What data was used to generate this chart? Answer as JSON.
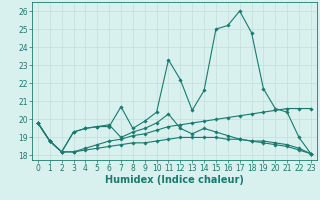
{
  "title": "",
  "xlabel": "Humidex (Indice chaleur)",
  "ylabel": "",
  "x": [
    0,
    1,
    2,
    3,
    4,
    5,
    6,
    7,
    8,
    9,
    10,
    11,
    12,
    13,
    14,
    15,
    16,
    17,
    18,
    19,
    20,
    21,
    22,
    23
  ],
  "line1": [
    19.8,
    18.8,
    18.2,
    19.3,
    19.5,
    19.6,
    19.6,
    20.7,
    19.5,
    19.9,
    20.4,
    23.3,
    22.2,
    20.5,
    21.6,
    25.0,
    25.2,
    26.0,
    24.8,
    21.7,
    20.6,
    20.4,
    19.0,
    18.1
  ],
  "line2": [
    19.8,
    18.8,
    18.2,
    19.3,
    19.5,
    19.6,
    19.7,
    19.0,
    19.3,
    19.5,
    19.8,
    20.3,
    19.5,
    19.2,
    19.5,
    19.3,
    19.1,
    18.9,
    18.8,
    18.8,
    18.7,
    18.6,
    18.4,
    18.1
  ],
  "line3": [
    19.8,
    18.8,
    18.2,
    18.2,
    18.4,
    18.6,
    18.8,
    18.9,
    19.1,
    19.2,
    19.4,
    19.6,
    19.7,
    19.8,
    19.9,
    20.0,
    20.1,
    20.2,
    20.3,
    20.4,
    20.5,
    20.6,
    20.6,
    20.6
  ],
  "line4": [
    19.8,
    18.8,
    18.2,
    18.2,
    18.3,
    18.4,
    18.5,
    18.6,
    18.7,
    18.7,
    18.8,
    18.9,
    19.0,
    19.0,
    19.0,
    19.0,
    18.9,
    18.9,
    18.8,
    18.7,
    18.6,
    18.5,
    18.3,
    18.1
  ],
  "line_color": "#1a7a6e",
  "bg_color": "#d8f0ee",
  "grid_color": "#c4dedd",
  "ylim": [
    17.75,
    26.5
  ],
  "xlim": [
    -0.5,
    23.5
  ],
  "yticks": [
    18,
    19,
    20,
    21,
    22,
    23,
    24,
    25,
    26
  ],
  "xticks": [
    0,
    1,
    2,
    3,
    4,
    5,
    6,
    7,
    8,
    9,
    10,
    11,
    12,
    13,
    14,
    15,
    16,
    17,
    18,
    19,
    20,
    21,
    22,
    23
  ],
  "tick_fontsize": 5.5,
  "label_fontsize": 7.0
}
